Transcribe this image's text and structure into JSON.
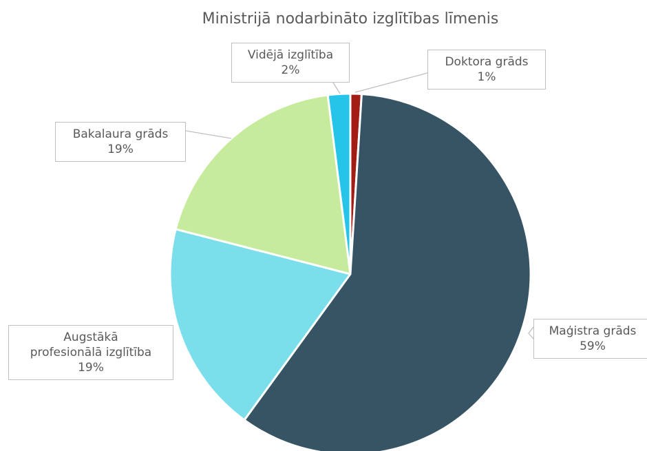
{
  "chart_data": {
    "type": "pie",
    "title": "Ministrijā nodarbināto izglītības līmenis",
    "categories": [
      "Doktora grāds",
      "Maģistra grāds",
      "Augstākā profesionālā izglītība",
      "Bakalaura grāds",
      "Vidējā izglītība"
    ],
    "values": [
      1,
      59,
      19,
      19,
      2
    ],
    "value_labels": [
      "1%",
      "59%",
      "19%",
      "19%",
      "2%"
    ],
    "colors": [
      "#a21d13",
      "#365463",
      "#7adfea",
      "#c7eb9d",
      "#27c4ea"
    ]
  }
}
